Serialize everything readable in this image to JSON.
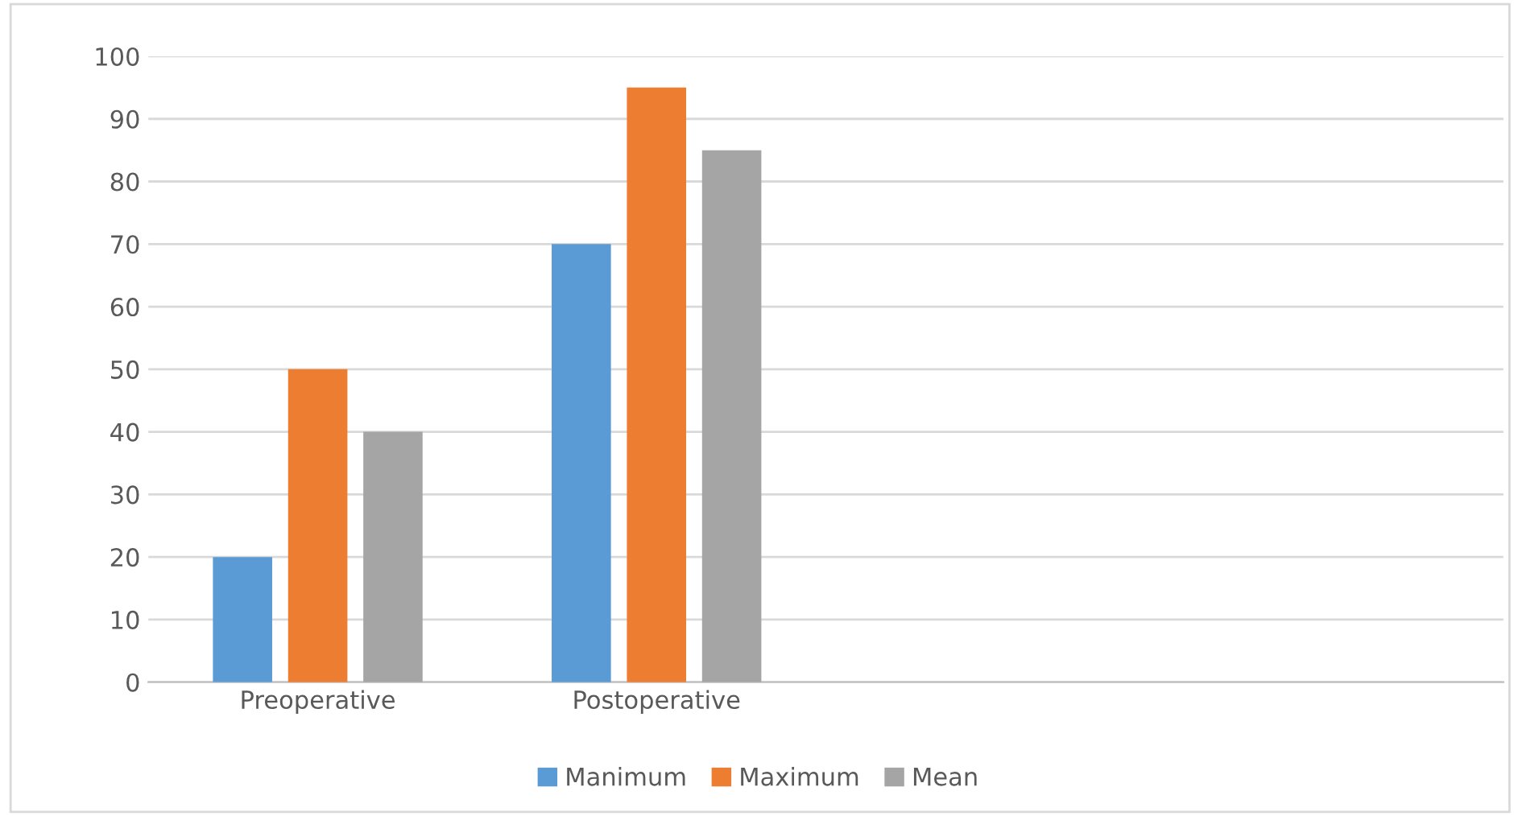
{
  "chart_data": {
    "type": "bar",
    "categories": [
      "Preoperative",
      "Postoperative",
      null,
      null
    ],
    "series": [
      {
        "name": "Manimum",
        "color": "#5b9bd5",
        "values": [
          20,
          70,
          null,
          null
        ]
      },
      {
        "name": "Maximum",
        "color": "#ed7d31",
        "values": [
          50,
          95,
          null,
          null
        ]
      },
      {
        "name": "Mean",
        "color": "#a5a5a5",
        "values": [
          40,
          85,
          null,
          null
        ]
      }
    ],
    "ylim": [
      0,
      100
    ],
    "yticks": [
      0,
      10,
      20,
      30,
      40,
      50,
      60,
      70,
      80,
      90,
      100
    ],
    "grid": "y",
    "legend": "bottom"
  }
}
